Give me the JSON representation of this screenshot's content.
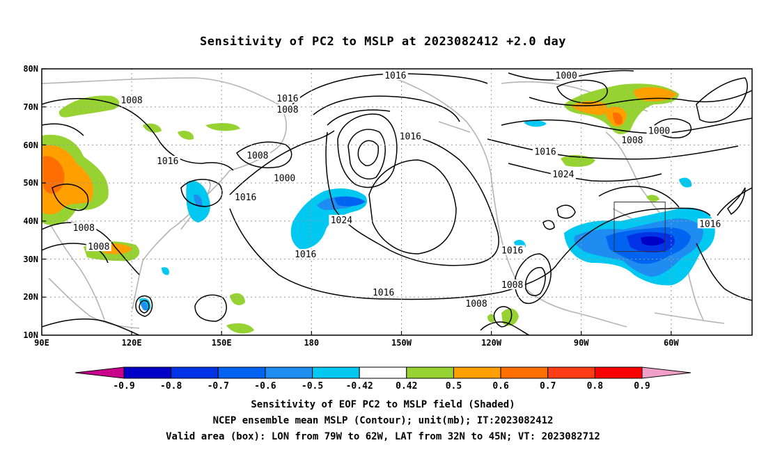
{
  "title": "Sensitivity of PC2 to MSLP at 2023082412 +2.0 day",
  "map": {
    "lat_labels": [
      "80N",
      "70N",
      "60N",
      "50N",
      "40N",
      "30N",
      "20N",
      "10N"
    ],
    "lon_labels": [
      "90E",
      "120E",
      "150E",
      "180",
      "150W",
      "120W",
      "90W",
      "60W"
    ],
    "extent": {
      "lon_min": 90,
      "lon_max": 327,
      "lat_min": 10,
      "lat_max": 80
    },
    "gridlines": "dotted",
    "contour_labels": [
      {
        "text": "1016",
        "lon": 208,
        "lat": 78
      },
      {
        "text": "1000",
        "lon": 265,
        "lat": 78
      },
      {
        "text": "1008",
        "lon": 120,
        "lat": 71.5
      },
      {
        "text": "1016",
        "lon": 172,
        "lat": 72
      },
      {
        "text": "1008",
        "lon": 172,
        "lat": 69
      },
      {
        "text": "1016",
        "lon": 213,
        "lat": 62
      },
      {
        "text": "1000",
        "lon": 296,
        "lat": 63.5
      },
      {
        "text": "1008",
        "lon": 287,
        "lat": 61
      },
      {
        "text": "1008",
        "lon": 162,
        "lat": 57
      },
      {
        "text": "1016",
        "lon": 258,
        "lat": 58
      },
      {
        "text": "1016",
        "lon": 132,
        "lat": 55.5
      },
      {
        "text": "1000",
        "lon": 171,
        "lat": 51
      },
      {
        "text": "1024",
        "lon": 264,
        "lat": 52
      },
      {
        "text": "1016",
        "lon": 158,
        "lat": 46
      },
      {
        "text": "1024",
        "lon": 190,
        "lat": 40
      },
      {
        "text": "1016",
        "lon": 313,
        "lat": 39
      },
      {
        "text": "1008",
        "lon": 104,
        "lat": 38
      },
      {
        "text": "1008",
        "lon": 109,
        "lat": 33
      },
      {
        "text": "1016",
        "lon": 247,
        "lat": 32
      },
      {
        "text": "1016",
        "lon": 178,
        "lat": 31
      },
      {
        "text": "1008",
        "lon": 247,
        "lat": 23
      },
      {
        "text": "1016",
        "lon": 204,
        "lat": 21
      },
      {
        "text": "1008",
        "lon": 235,
        "lat": 18
      }
    ],
    "valid_box": {
      "lon_west": 281,
      "lon_east": 298,
      "lat_south": 32,
      "lat_north": 45
    }
  },
  "colorbar": {
    "labels": [
      "-0.9",
      "-0.8",
      "-0.7",
      "-0.6",
      "-0.5",
      "-0.42",
      "0.42",
      "0.5",
      "0.6",
      "0.7",
      "0.8",
      "0.9"
    ],
    "colors": [
      "#0000c8",
      "#0032e6",
      "#0064f0",
      "#1e8cf0",
      "#00c8f0",
      "#ffffff",
      "#96d232",
      "#ffa000",
      "#ff6e00",
      "#ff3c14",
      "#ff0000"
    ],
    "low_end_color": "#c8008c",
    "high_end_color": "#f0a0c8"
  },
  "captions": [
    "Sensitivity of EOF PC2 to MSLP field (Shaded)",
    "NCEP ensemble mean MSLP (Contour); unit(mb); IT:2023082412",
    "Valid area (box): LON from 79W to 62W, LAT from 32N to 45N; VT: 2023082712"
  ]
}
